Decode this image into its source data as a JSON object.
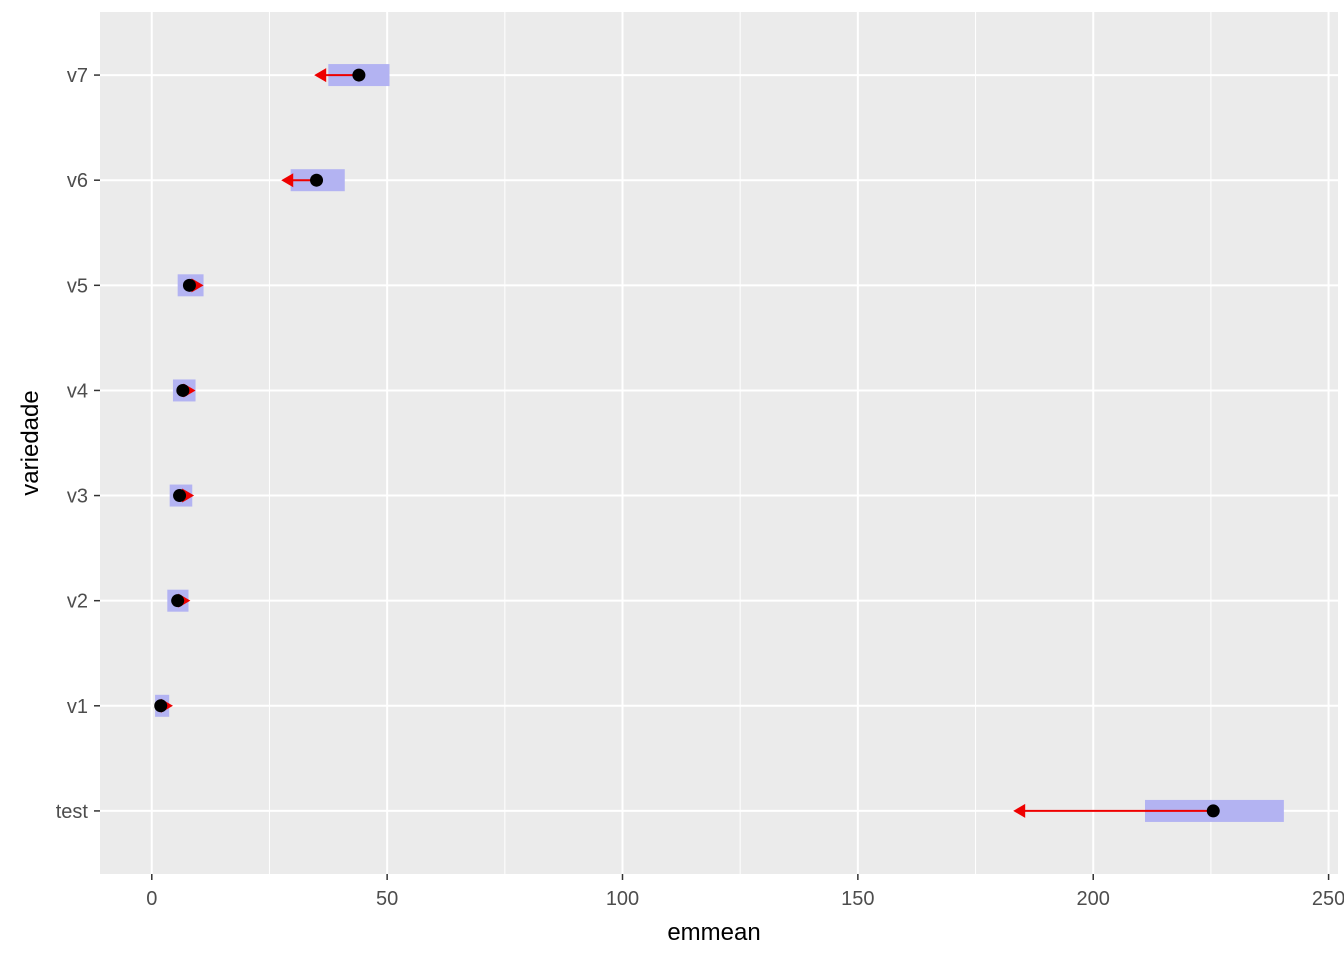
{
  "chart_data": {
    "type": "scatter",
    "title": "",
    "xlabel": "emmean",
    "ylabel": "variedade",
    "xlim": [
      -11,
      252
    ],
    "x_ticks": [
      0,
      50,
      100,
      150,
      200,
      250
    ],
    "x_tick_labels": [
      "0",
      "50",
      "100",
      "150",
      "200",
      "250"
    ],
    "categories": [
      "test",
      "v1",
      "v2",
      "v3",
      "v4",
      "v5",
      "v6",
      "v7"
    ],
    "series": [
      {
        "values": [
          225.5,
          1.9,
          5.5,
          5.9,
          6.6,
          8.0,
          35.0,
          44.0
        ],
        "ci_lower": [
          211.0,
          0.7,
          3.3,
          3.8,
          4.5,
          5.5,
          29.5,
          37.5
        ],
        "ci_upper": [
          240.5,
          3.7,
          7.8,
          8.6,
          9.3,
          11.0,
          41.0,
          50.5
        ],
        "arrow_to": [
          183.0,
          4.5,
          8.2,
          9.0,
          9.3,
          11.0,
          27.5,
          34.5
        ]
      }
    ],
    "grid": true,
    "legend": "none",
    "colors": {
      "panel": "#ebebeb",
      "grid": "#ffffff",
      "ci_bar": "#b3b3f2",
      "arrow": "#ee0000",
      "point": "#000000",
      "tick_text": "#4d4d4d"
    }
  }
}
